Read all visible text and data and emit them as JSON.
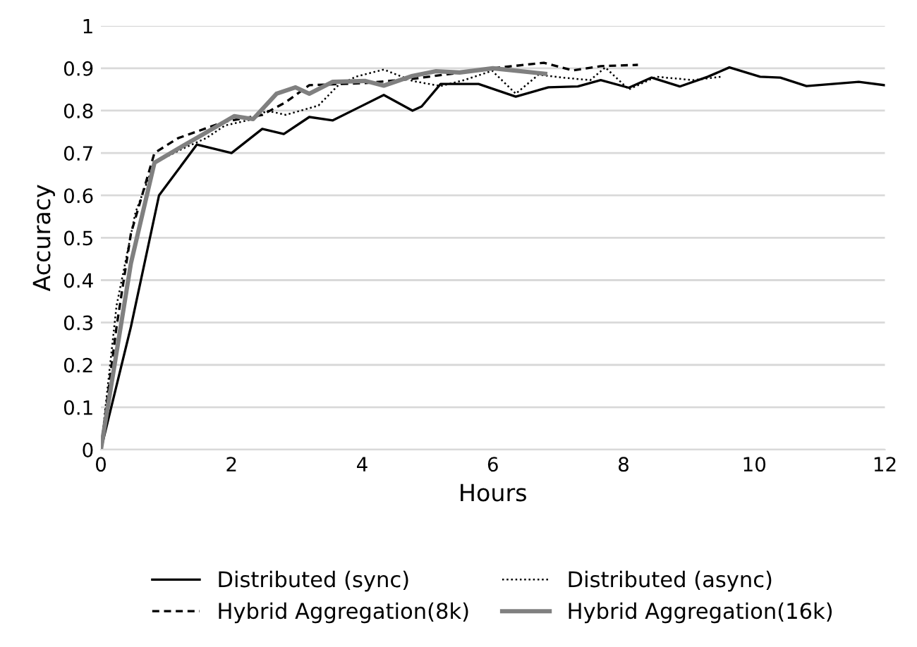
{
  "chart_data": {
    "type": "line",
    "xlabel": "Hours",
    "ylabel": "Accuracy",
    "xlim": [
      0,
      12
    ],
    "ylim": [
      0,
      1
    ],
    "xticks": [
      0,
      2,
      4,
      6,
      8,
      10,
      12
    ],
    "yticks": [
      0,
      0.1,
      0.2,
      0.3,
      0.4,
      0.5,
      0.6,
      0.7,
      0.8,
      0.9,
      1
    ],
    "grid": "y",
    "legend": "bottom",
    "marker": "none",
    "series": [
      {
        "name": "Distributed (sync)",
        "color": "#000000",
        "line_style": "solid",
        "x": [
          0,
          0.46,
          0.89,
          1.47,
          2.0,
          2.47,
          2.8,
          3.19,
          3.55,
          4.33,
          4.77,
          4.91,
          5.2,
          5.78,
          6.35,
          6.85,
          7.3,
          7.65,
          8.08,
          8.43,
          8.86,
          9.29,
          9.62,
          10.09,
          10.4,
          10.8,
          11.6,
          12
        ],
        "values": [
          0,
          0.29,
          0.6,
          0.72,
          0.7,
          0.757,
          0.745,
          0.785,
          0.777,
          0.837,
          0.8,
          0.81,
          0.863,
          0.863,
          0.833,
          0.855,
          0.857,
          0.872,
          0.854,
          0.878,
          0.857,
          0.88,
          0.902,
          0.88,
          0.878,
          0.858,
          0.868,
          0.86
        ]
      },
      {
        "name": "Distributed (async)",
        "color": "#000000",
        "line_style": "dotted",
        "x": [
          0,
          0.24,
          0.53,
          0.82,
          1.25,
          1.61,
          1.9,
          2.33,
          2.54,
          2.83,
          3.33,
          3.62,
          3.9,
          4.33,
          4.77,
          5.2,
          5.56,
          5.99,
          6.35,
          6.7,
          7.06,
          7.49,
          7.72,
          8.08,
          8.5,
          9.07,
          9.5
        ],
        "values": [
          0,
          0.34,
          0.56,
          0.677,
          0.71,
          0.735,
          0.765,
          0.78,
          0.8,
          0.79,
          0.812,
          0.858,
          0.88,
          0.897,
          0.87,
          0.858,
          0.872,
          0.894,
          0.84,
          0.885,
          0.878,
          0.872,
          0.902,
          0.85,
          0.88,
          0.872,
          0.88
        ]
      },
      {
        "name": "Hybrid Aggregation(8k)",
        "color": "#000000",
        "line_style": "dashed",
        "x": [
          0,
          0.24,
          0.46,
          0.82,
          1.18,
          1.9,
          2.47,
          2.83,
          3.19,
          4.05,
          4.77,
          6.0,
          6.78,
          7.22,
          7.65,
          8.22
        ],
        "values": [
          0,
          0.29,
          0.51,
          0.7,
          0.735,
          0.774,
          0.79,
          0.82,
          0.86,
          0.865,
          0.875,
          0.9,
          0.913,
          0.895,
          0.905,
          0.908
        ]
      },
      {
        "name": "Hybrid Aggregation(16k)",
        "color": "#808080",
        "line_style": "solid",
        "x": [
          0,
          0.46,
          0.82,
          1.18,
          1.54,
          2.04,
          2.33,
          2.69,
          2.98,
          3.19,
          3.55,
          4.05,
          4.33,
          4.77,
          5.13,
          5.49,
          6.0,
          6.8
        ],
        "values": [
          0,
          0.44,
          0.677,
          0.71,
          0.742,
          0.787,
          0.78,
          0.84,
          0.855,
          0.84,
          0.868,
          0.87,
          0.859,
          0.882,
          0.893,
          0.89,
          0.9,
          0.887
        ]
      }
    ]
  }
}
